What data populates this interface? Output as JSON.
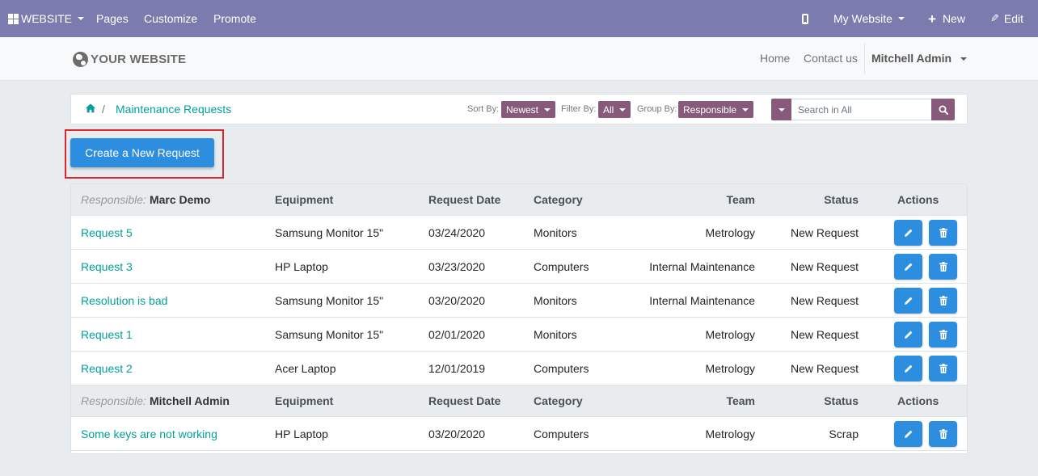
{
  "topbar": {
    "website_menu": "WEBSITE",
    "pages": "Pages",
    "customize": "Customize",
    "promote": "Promote",
    "my_website": "My Website",
    "new": "New",
    "edit": "Edit"
  },
  "header": {
    "logo": "YOUR WEBSITE",
    "home": "Home",
    "contact": "Contact us",
    "user": "Mitchell Admin"
  },
  "breadcrumb": {
    "separator": "/",
    "current": "Maintenance Requests"
  },
  "filters": {
    "sort_label": "Sort By:",
    "sort_value": "Newest",
    "filter_label": "Filter By:",
    "filter_value": "All",
    "group_label": "Group By:",
    "group_value": "Responsible",
    "search_placeholder": "Search in All"
  },
  "create_button": "Create a New Request",
  "table": {
    "columns": {
      "equipment": "Equipment",
      "request_date": "Request Date",
      "category": "Category",
      "team": "Team",
      "status": "Status",
      "actions": "Actions"
    },
    "responsible_label": "Responsible:",
    "groups": [
      {
        "responsible": "Marc Demo",
        "rows": [
          {
            "name": "Request 5",
            "equipment": "Samsung Monitor 15\"",
            "date": "03/24/2020",
            "category": "Monitors",
            "team": "Metrology",
            "status": "New Request"
          },
          {
            "name": "Request 3",
            "equipment": "HP Laptop",
            "date": "03/23/2020",
            "category": "Computers",
            "team": "Internal Maintenance",
            "status": "New Request"
          },
          {
            "name": "Resolution is bad",
            "equipment": "Samsung Monitor 15\"",
            "date": "03/20/2020",
            "category": "Monitors",
            "team": "Internal Maintenance",
            "status": "New Request"
          },
          {
            "name": "Request 1",
            "equipment": "Samsung Monitor 15\"",
            "date": "02/01/2020",
            "category": "Monitors",
            "team": "Metrology",
            "status": "New Request"
          },
          {
            "name": "Request 2",
            "equipment": "Acer Laptop",
            "date": "12/01/2019",
            "category": "Computers",
            "team": "Metrology",
            "status": "New Request"
          }
        ]
      },
      {
        "responsible": "Mitchell Admin",
        "rows": [
          {
            "name": "Some keys are not working",
            "equipment": "HP Laptop",
            "date": "03/20/2020",
            "category": "Computers",
            "team": "Metrology",
            "status": "Scrap"
          }
        ]
      }
    ]
  }
}
